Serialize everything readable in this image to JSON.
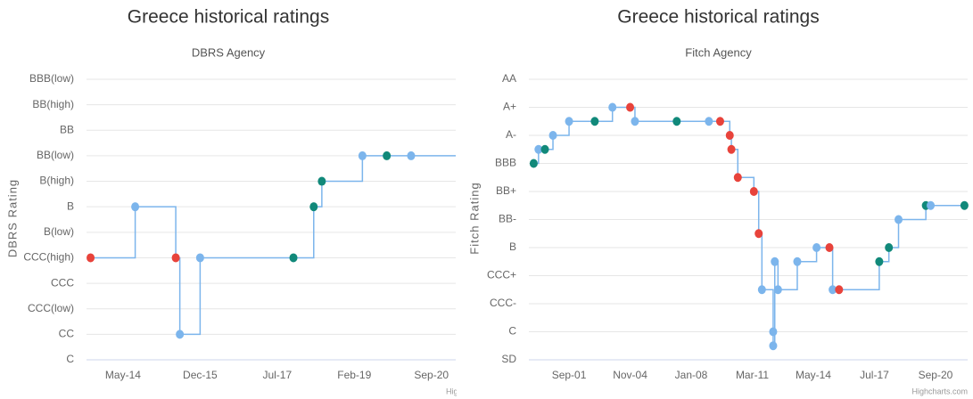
{
  "chart_data": [
    {
      "type": "step-line",
      "title": "Greece historical ratings",
      "subtitle": "DBRS Agency",
      "y_label": "DBRS Rating",
      "credits": "Highcharts.com",
      "x": [
        "2013-09",
        "2014-08",
        "2015-06",
        "2015-07",
        "2015-12",
        "2017-11",
        "2018-04",
        "2018-06",
        "2019-04",
        "2019-10",
        "2020-04"
      ],
      "series": [
        {
          "color": "#7cb5ec",
          "values": [
            4,
            6,
            4,
            1,
            4,
            4,
            6,
            7,
            8,
            8,
            8
          ],
          "point_colors": [
            "#e8433b",
            "#7cb5ec",
            "#e8433b",
            "#7cb5ec",
            "#7cb5ec",
            "#11897a",
            "#11897a",
            "#11897a",
            "#7cb5ec",
            "#11897a",
            "#7cb5ec"
          ]
        }
      ],
      "xlim": [
        "2013-08",
        "2021-03"
      ],
      "xticks": [
        {
          "value": "2014-05",
          "label": "May-14"
        },
        {
          "value": "2015-12",
          "label": "Dec-15"
        },
        {
          "value": "2017-07",
          "label": "Jul-17"
        },
        {
          "value": "2019-02",
          "label": "Feb-19"
        },
        {
          "value": "2020-09",
          "label": "Sep-20"
        }
      ],
      "ylim": [
        0,
        11
      ],
      "yticks": [
        {
          "value": 0,
          "label": "C"
        },
        {
          "value": 1,
          "label": "CC"
        },
        {
          "value": 2,
          "label": "CCC(low)"
        },
        {
          "value": 3,
          "label": "CCC"
        },
        {
          "value": 4,
          "label": "CCC(high)"
        },
        {
          "value": 5,
          "label": "B(low)"
        },
        {
          "value": 6,
          "label": "B"
        },
        {
          "value": 7,
          "label": "B(high)"
        },
        {
          "value": 8,
          "label": "BB(low)"
        },
        {
          "value": 9,
          "label": "BB"
        },
        {
          "value": 10,
          "label": "BB(high)"
        },
        {
          "value": 11,
          "label": "BBB(low)"
        }
      ],
      "grid": true
    },
    {
      "type": "step-line",
      "title": "Greece historical ratings",
      "subtitle": "Fitch Agency",
      "y_label": "Fitch Rating",
      "credits": "Highcharts.com",
      "x": [
        "1999-11",
        "2000-02",
        "2000-06",
        "2000-11",
        "2001-09",
        "2003-01",
        "2003-12",
        "2004-11",
        "2005-02",
        "2007-04",
        "2008-12",
        "2009-07",
        "2010-01",
        "2010-02",
        "2010-06",
        "2011-04",
        "2011-07",
        "2011-09",
        "2012-04",
        "2012-04",
        "2012-05",
        "2012-07",
        "2013-07",
        "2014-07",
        "2015-03",
        "2015-05",
        "2015-09",
        "2017-10",
        "2018-04",
        "2018-10",
        "2020-03",
        "2020-06",
        "2022-03"
      ],
      "series": [
        {
          "color": "#7cb5ec",
          "values": [
            14,
            15,
            15,
            16,
            17,
            17,
            18,
            18,
            17,
            17,
            17,
            17,
            16,
            15,
            13,
            12,
            9,
            5,
            2,
            1,
            7,
            5,
            7,
            8,
            8,
            5,
            5,
            7,
            8,
            10,
            11,
            11,
            11
          ],
          "point_colors": [
            "#11897a",
            "#7cb5ec",
            "#11897a",
            "#7cb5ec",
            "#7cb5ec",
            "#11897a",
            "#7cb5ec",
            "#e8433b",
            "#7cb5ec",
            "#11897a",
            "#7cb5ec",
            "#e8433b",
            "#e8433b",
            "#e8433b",
            "#e8433b",
            "#e8433b",
            "#e8433b",
            "#7cb5ec",
            "#7cb5ec",
            "#7cb5ec",
            "#7cb5ec",
            "#7cb5ec",
            "#7cb5ec",
            "#7cb5ec",
            "#e8433b",
            "#7cb5ec",
            "#e8433b",
            "#11897a",
            "#11897a",
            "#7cb5ec",
            "#11897a",
            "#7cb5ec",
            "#11897a"
          ]
        }
      ],
      "xlim": [
        "1999-08",
        "2022-05"
      ],
      "xticks": [
        {
          "value": "2001-09",
          "label": "Sep-01"
        },
        {
          "value": "2004-11",
          "label": "Nov-04"
        },
        {
          "value": "2008-01",
          "label": "Jan-08"
        },
        {
          "value": "2011-03",
          "label": "Mar-11"
        },
        {
          "value": "2014-05",
          "label": "May-14"
        },
        {
          "value": "2017-07",
          "label": "Jul-17"
        },
        {
          "value": "2020-09",
          "label": "Sep-20"
        }
      ],
      "ylim": [
        0,
        20
      ],
      "yticks": [
        {
          "value": 0,
          "label": "SD"
        },
        {
          "value": 2,
          "label": "C"
        },
        {
          "value": 4,
          "label": "CCC-"
        },
        {
          "value": 6,
          "label": "CCC+"
        },
        {
          "value": 8,
          "label": "B"
        },
        {
          "value": 10,
          "label": "BB-"
        },
        {
          "value": 12,
          "label": "BB+"
        },
        {
          "value": 14,
          "label": "BBB"
        },
        {
          "value": 16,
          "label": "A-"
        },
        {
          "value": 18,
          "label": "A+"
        },
        {
          "value": 20,
          "label": "AA"
        }
      ],
      "grid": true
    }
  ]
}
